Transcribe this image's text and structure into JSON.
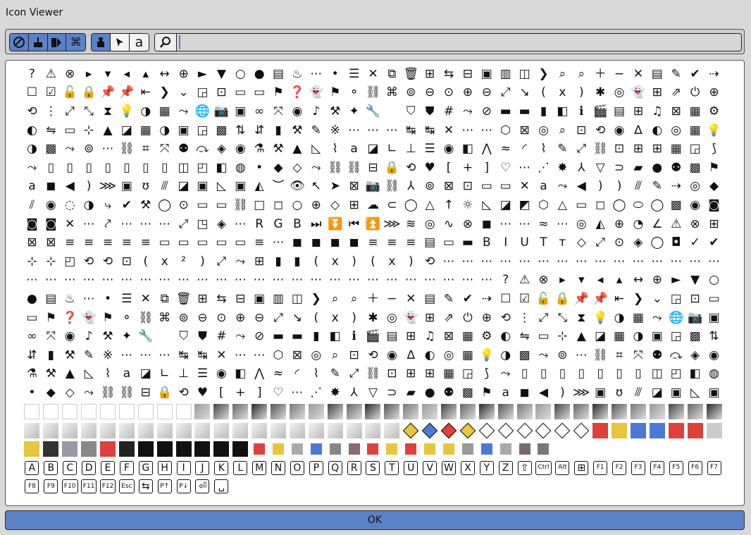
{
  "window": {
    "title": "Icon Viewer"
  },
  "toolbar": {
    "group1": [
      "circle-icon",
      "paint-icon",
      "color-icon",
      "command-icon"
    ],
    "group2": [
      "brush-icon",
      "pointer-icon",
      "text-icon"
    ],
    "search": {
      "value": "",
      "placeholder": ""
    }
  },
  "grid": {
    "glyphs": "?⚠⊗▸▾◂▴↔⊕►▼○●▤♨⋯•☰✕⧉🗑⊞⇆⊟▣▥◫❯⌕⌕＋−✕▤✎✔⇢☐☑🔓🔒📌📌⇤❯⌄◲⊡▭▭⚑❓👻⚑⚬⛓⌘⊚⊖⊙⊕⊖⤢↘(x)✱◎👻⊞⇗⏻⊕⟲⋮⤢⤡⧗💡◑▦⤳🌐📷▣∞⤧◉♪⚒✦🔧 ⛉⛊#⤳⊘▬▬▮◧ℹ🎬▤⊞♫⊠▦⚙◐⇋▭⊹▲◪▦◑▣◲▩⇅⇵▮⚒✎※⋯⋯⋯↹↹✕⋯⋯⬡⊠◎⌕⊡⟲◉∆◐◎▦💡◑▩⤳⊚⋯⛓⌗⤧⚉⤼◈◉⚗⚒▲◺⌇a◪∟⊥☰◉◧⋀≈◜⌇✎⤢⛓⊡⊞⊞▦◲⟆⤳▯▯▯▯▯▯▯◫◰◧◍•◆◇⤳⛓⛓⊟🔒⟲♥[+]♡⋯⋰✸⅄▽⊃▰●⚉▩⚑a◼◀)⋙▣ʊ⫻◪▣◺▣◭︶👁↖➤⊠📷⛓⅄⊚⊠⊡▭▭✕a⤳◀))⫻✎⇢◎◆⫽◉◌◑⤷✔⚒◯⊙▭▭⛓□◻○⊕◇⊞☁⊂◯△↑☼◺◪◩⬡△▭◻◯⬭◯▩◉◙◙◙✕⋯⤤⋯⋯⋯⤢◳◈⋯RGB⏭⏬⏮⏫⋙≋◎∿⊗◼⋯⋯≈⋯◎◭⊕◔∠⚠⊗⊞⊠⊠≡≡≡≡≡▭▭▭▭▭≡⋯◼◼◼◼≡≡≡▤▭▬BIUTт◇⤢⊙◈◯◘✓✔⊹⊹◰⟲⟲⊡(x²)⤢⤳⊞▮▮(x)(x)⟲⋯⋯⋯⋯⋯⋯⋯⋯⋯⋯⋯⋯⋯⋯⋯⋯⋯⋯⋯⋯⋯⋯⋯⋯⋯⋯⋯⋯⋯⋯⋯⋯⋯⋯⋯⋯⋯⋯⋯⋯",
    "keys": [
      "A",
      "B",
      "C",
      "D",
      "E",
      "F",
      "G",
      "H",
      "I",
      "J",
      "K",
      "L",
      "M",
      "N",
      "O",
      "P",
      "Q",
      "R",
      "S",
      "T",
      "U",
      "V",
      "W",
      "X",
      "Y",
      "Z",
      "⇧",
      "Ctrl",
      "Alt",
      "⊞",
      "F1",
      "F2",
      "F3",
      "F4",
      "F5",
      "F6",
      "F7",
      "F8",
      "F9",
      "F10",
      "F11",
      "F12",
      "Esc",
      "⇆",
      "P↑",
      "P↓",
      "⏎",
      "␣"
    ]
  },
  "footer": {
    "ok_label": "OK"
  },
  "colors": {
    "accent": "#5a82c8",
    "swatch_red": "#e0403a",
    "swatch_yellow": "#e8c53a",
    "swatch_blue": "#4a7ad8"
  }
}
